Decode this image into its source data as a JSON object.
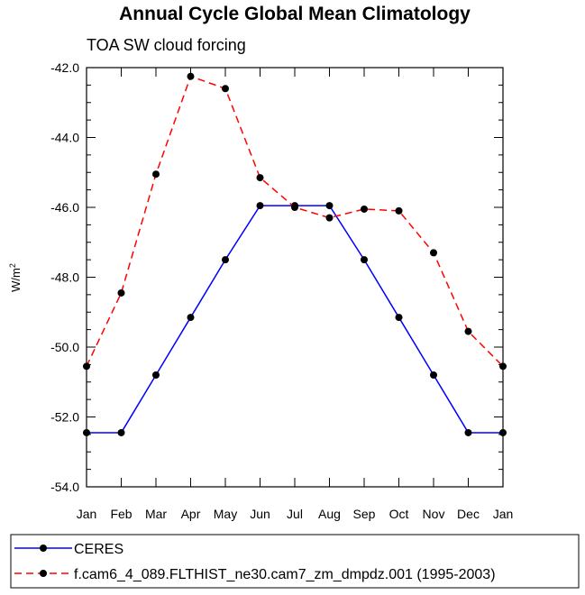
{
  "chart_data": {
    "type": "line",
    "title": "Annual Cycle Global Mean Climatology",
    "subtitle": "TOA SW cloud forcing",
    "ylabel": "W/m",
    "ylabel_sup": "2",
    "xlabel": "",
    "categories": [
      "Jan",
      "Feb",
      "Mar",
      "Apr",
      "May",
      "Jun",
      "Jul",
      "Aug",
      "Sep",
      "Oct",
      "Nov",
      "Dec",
      "Jan"
    ],
    "ylim": [
      -54.0,
      -42.0
    ],
    "yticks": [
      "-42.0",
      "-44.0",
      "-46.0",
      "-48.0",
      "-50.0",
      "-52.0",
      "-54.0"
    ],
    "grid": false,
    "legend_position": "bottom",
    "series": [
      {
        "name": "CERES",
        "color": "#0000ff",
        "dash": "solid",
        "values": [
          -52.45,
          -52.45,
          -50.8,
          -49.15,
          -47.5,
          -45.95,
          -45.95,
          -45.95,
          -47.5,
          -49.15,
          -50.8,
          -52.45,
          -52.45
        ]
      },
      {
        "name": "f.cam6_4_089.FLTHIST_ne30.cam7_zm_dmpdz.001 (1995-2003)",
        "color": "#ff0000",
        "dash": "dashed",
        "values": [
          -50.55,
          -48.45,
          -45.05,
          -42.25,
          -42.6,
          -45.15,
          -46.0,
          -46.3,
          -46.05,
          -46.1,
          -47.3,
          -49.55,
          -50.55
        ]
      }
    ]
  }
}
